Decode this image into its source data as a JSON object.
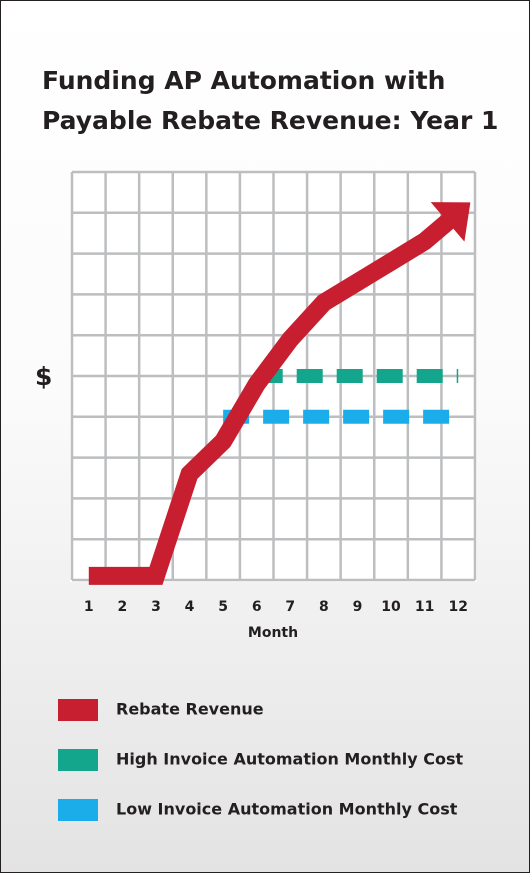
{
  "chart_data": {
    "type": "line",
    "title": [
      "Funding AP Automation with",
      "Payable Rebate Revenue: Year 1"
    ],
    "y_label": "$",
    "x_label": "Month",
    "categories": [
      "1",
      "2",
      "3",
      "4",
      "5",
      "6",
      "7",
      "8",
      "9",
      "10",
      "11",
      "12"
    ],
    "ylim": [
      0,
      10
    ],
    "yticks": [
      0,
      1,
      2,
      3,
      4,
      5,
      6,
      7,
      8,
      9,
      10
    ],
    "grid": true,
    "series": [
      {
        "name": "Rebate Revenue",
        "color": "#c71f2f",
        "style": "arrow",
        "values": [
          0.1,
          0.1,
          0.1,
          2.6,
          3.4,
          4.8,
          5.9,
          6.8,
          7.3,
          7.8,
          8.3,
          9.0
        ]
      },
      {
        "name": "High Invoice Automation Monthly Cost",
        "color": "#13a68c",
        "style": "dashed",
        "values": [
          null,
          null,
          null,
          null,
          null,
          5.0,
          5.0,
          5.0,
          5.0,
          5.0,
          5.0,
          5.0
        ]
      },
      {
        "name": "Low Invoice Automation Monthly Cost",
        "color": "#1badea",
        "style": "dashed",
        "values": [
          null,
          null,
          null,
          null,
          4.0,
          4.0,
          4.0,
          4.0,
          4.0,
          4.0,
          4.0,
          4.0
        ]
      }
    ]
  }
}
